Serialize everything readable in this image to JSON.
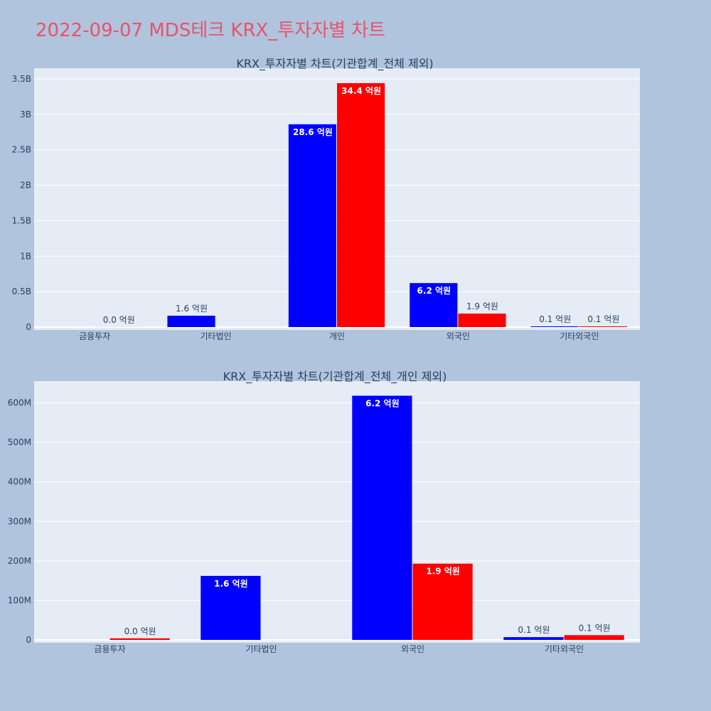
{
  "page": {
    "title": "2022-09-07 MDS테크 KRX_투자자별 차트"
  },
  "colors": {
    "background": "#b0c4de",
    "plot_bg": "#e5ecf6",
    "series_blue": "#0000ff",
    "series_red": "#ff0000",
    "title_color": "#e8536b"
  },
  "chart_data": [
    {
      "type": "bar",
      "title": "KRX_투자자별 차트(기관합계_전체 제외)",
      "categories": [
        "금융투자",
        "기타법인",
        "개인",
        "외국인",
        "기타외국인"
      ],
      "series": [
        {
          "color": "blue",
          "values": [
            0,
            160000000,
            2860000000,
            620000000,
            10000000
          ],
          "labels": [
            "",
            "1.6 억원",
            "28.6 억원",
            "6.2 억원",
            "0.1 억원"
          ]
        },
        {
          "color": "red",
          "values": [
            1000000,
            0,
            3440000000,
            190000000,
            10000000
          ],
          "labels": [
            "0.0 억원",
            "",
            "34.4 억원",
            "1.9 억원",
            "0.1 억원"
          ]
        }
      ],
      "ylim": [
        0,
        3650000000
      ],
      "yticks": [
        0,
        500000000,
        1000000000,
        1500000000,
        2000000000,
        2500000000,
        3000000000,
        3500000000
      ],
      "ytick_labels": [
        "0",
        "0.5B",
        "1B",
        "1.5B",
        "2B",
        "2.5B",
        "3B",
        "3.5B"
      ],
      "grid": true
    },
    {
      "type": "bar",
      "title": "KRX_투자자별 차트(기관합계_전체_개인 제외)",
      "categories": [
        "금융투자",
        "기타법인",
        "외국인",
        "기타외국인"
      ],
      "series": [
        {
          "color": "blue",
          "values": [
            0,
            162000000,
            618000000,
            7000000
          ],
          "labels": [
            "",
            "1.6 억원",
            "6.2 억원",
            "0.1 억원"
          ]
        },
        {
          "color": "red",
          "values": [
            4000000,
            0,
            193000000,
            12000000
          ],
          "labels": [
            "0.0 억원",
            "",
            "1.9 억원",
            "0.1 억원"
          ]
        }
      ],
      "ylim": [
        0,
        655000000
      ],
      "yticks": [
        0,
        100000000,
        200000000,
        300000000,
        400000000,
        500000000,
        600000000
      ],
      "ytick_labels": [
        "0",
        "100M",
        "200M",
        "300M",
        "400M",
        "500M",
        "600M"
      ],
      "grid": true
    }
  ]
}
